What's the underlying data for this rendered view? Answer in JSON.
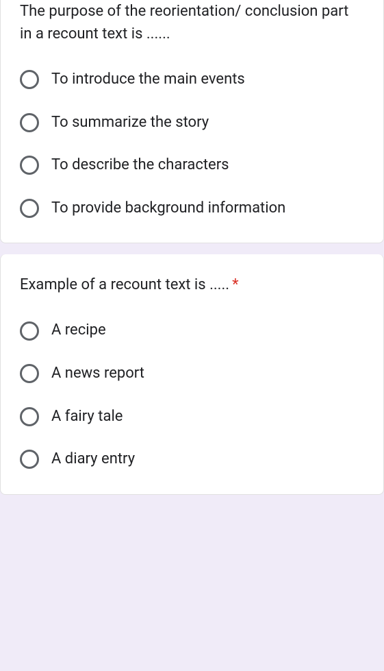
{
  "questions": [
    {
      "text": "The purpose of the reorientation/ conclusion part in a recount text is ......",
      "required": false,
      "options": [
        "To introduce the main events",
        "To summarize the story",
        "To describe the characters",
        "To provide background information"
      ]
    },
    {
      "text": "Example of a recount text is .....",
      "required": true,
      "options": [
        "A recipe",
        "A news report",
        "A fairy tale",
        "A diary entry"
      ]
    }
  ],
  "colors": {
    "background": "#f0ebf8",
    "card_bg": "#ffffff",
    "text": "#202124",
    "radio_border": "#5f6368",
    "required": "#d93025",
    "card_border": "#e0e0e0"
  },
  "typography": {
    "font_family": "Roboto, Arial, sans-serif",
    "question_fontsize": 22,
    "option_fontsize": 22
  },
  "required_marker": "*"
}
